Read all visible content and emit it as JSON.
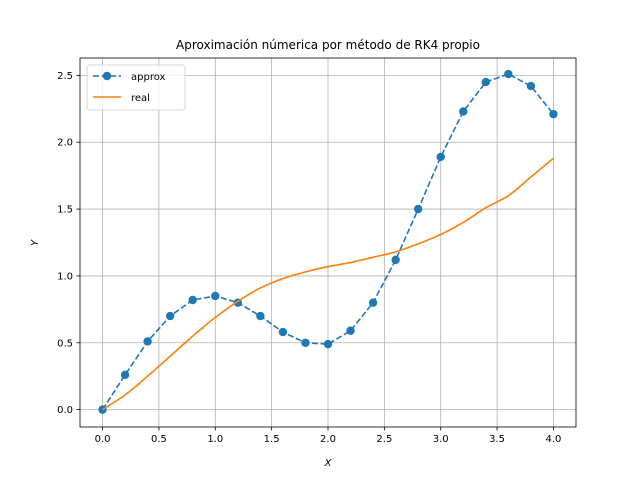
{
  "chart_data": {
    "type": "line",
    "title": "Aproximación númerica por método de RK4 propio",
    "xlabel": "X",
    "ylabel": "Y",
    "xlim": [
      -0.2,
      4.2
    ],
    "ylim": [
      -0.13,
      2.63
    ],
    "xticks": [
      0.0,
      0.5,
      1.0,
      1.5,
      2.0,
      2.5,
      3.0,
      3.5,
      4.0
    ],
    "xtick_labels": [
      "0.0",
      "0.5",
      "1.0",
      "1.5",
      "2.0",
      "2.5",
      "3.0",
      "3.5",
      "4.0"
    ],
    "yticks": [
      0.0,
      0.5,
      1.0,
      1.5,
      2.0,
      2.5
    ],
    "ytick_labels": [
      "0.0",
      "0.5",
      "1.0",
      "1.5",
      "2.0",
      "2.5"
    ],
    "grid": true,
    "legend_position": "upper-left",
    "series": [
      {
        "name": "approx",
        "color": "#1f77b4",
        "style": "dashed-with-markers",
        "x": [
          0.0,
          0.2,
          0.4,
          0.6,
          0.8,
          1.0,
          1.2,
          1.4,
          1.6,
          1.8,
          2.0,
          2.2,
          2.4,
          2.6,
          2.8,
          3.0,
          3.2,
          3.4,
          3.6,
          3.8,
          4.0
        ],
        "y": [
          0.0,
          0.26,
          0.51,
          0.7,
          0.82,
          0.85,
          0.8,
          0.7,
          0.58,
          0.5,
          0.49,
          0.59,
          0.8,
          1.12,
          1.5,
          1.89,
          2.23,
          2.45,
          2.51,
          2.42,
          2.21
        ]
      },
      {
        "name": "real",
        "color": "#ff7f0e",
        "style": "solid",
        "x": [
          0.0,
          0.2,
          0.4,
          0.6,
          0.8,
          1.0,
          1.2,
          1.4,
          1.6,
          1.8,
          2.0,
          2.2,
          2.4,
          2.6,
          2.8,
          3.0,
          3.2,
          3.4,
          3.6,
          3.8,
          4.0
        ],
        "y": [
          0.0,
          0.11,
          0.25,
          0.4,
          0.55,
          0.69,
          0.81,
          0.91,
          0.98,
          1.03,
          1.07,
          1.1,
          1.14,
          1.18,
          1.24,
          1.31,
          1.4,
          1.51,
          1.6,
          1.74,
          1.88
        ]
      }
    ]
  }
}
